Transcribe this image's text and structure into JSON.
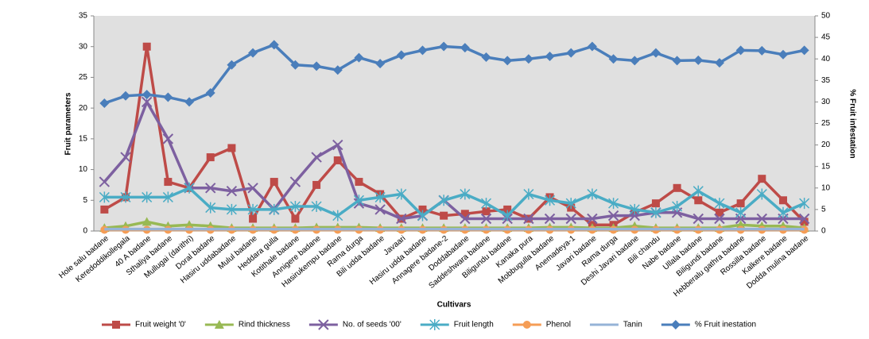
{
  "chart_data": {
    "type": "line",
    "x_label": "Cultivars",
    "y_label": "Fruit parameters",
    "y2_label": "% Fruit infestation",
    "categories": [
      "Hole salu badane",
      "Keredoddikollegala",
      "40 A badane",
      "Sthaliya badane",
      "Mullugai (darithri)",
      "Doral badane",
      "Hasiru uddabadane",
      "Mulul badane",
      "Heddara gulla",
      "Kotithale badane",
      "Annigere badane",
      "Hasirukempu badane",
      "Rama durga",
      "Bili udda badane",
      "Javaari",
      "Hasiru udda badane",
      "Annagere badane-2",
      "Doddabadane",
      "Saddeshwara badane",
      "Biligundu badane",
      "Kanaka pura",
      "Mobbugulla badane",
      "Anemadeya-1",
      "Javari badane",
      "Rama durga",
      "Deshi Javari badane",
      "Bili chandu",
      "Nabe badane",
      "Ullala badane",
      "Biligundi badane",
      "Hebberalu gathra badane",
      "Rossilla badane",
      "Kalkere badane",
      "Dodda mulina badane"
    ],
    "ylim": [
      0,
      35
    ],
    "yticks": [
      0,
      5,
      10,
      15,
      20,
      25,
      30,
      35
    ],
    "y2lim": [
      0,
      50
    ],
    "y2ticks": [
      0,
      5,
      10,
      15,
      20,
      25,
      30,
      35,
      40,
      45,
      50
    ],
    "legend": "bottom",
    "series": [
      {
        "name": "Fruit weight '0'",
        "color": "#be4b48",
        "marker": "square",
        "values": [
          3.5,
          5.5,
          30,
          8,
          7,
          12,
          13.5,
          2,
          8,
          2,
          7.5,
          11.5,
          8,
          6,
          2,
          3.5,
          2.5,
          2.8,
          3.2,
          3.5,
          2,
          5.5,
          3.8,
          1,
          1,
          3,
          4.5,
          7,
          5,
          3,
          4.5,
          8.5,
          5,
          1.5
        ]
      },
      {
        "name": "Rind thickness",
        "color": "#98b954",
        "marker": "triangle",
        "values": [
          0.5,
          0.8,
          1.5,
          0.8,
          1,
          0.8,
          0.5,
          0.5,
          0.5,
          0.5,
          0.6,
          0.6,
          0.6,
          0.5,
          0.5,
          0.5,
          0.5,
          0.5,
          0.5,
          0.5,
          0.5,
          0.6,
          0.6,
          0.5,
          0.5,
          0.8,
          0.5,
          0.5,
          0.5,
          0.5,
          1,
          0.8,
          0.8,
          0.5
        ]
      },
      {
        "name": "No. of seeds '00'",
        "color": "#7d60a0",
        "marker": "cross",
        "values": [
          8,
          12,
          21,
          15,
          7,
          7,
          6.5,
          7,
          3.5,
          8,
          12,
          14,
          4.5,
          3.5,
          2,
          2.5,
          5,
          2,
          2,
          2,
          2,
          2,
          2,
          2,
          2.5,
          2.5,
          3,
          3,
          2,
          2,
          2,
          2,
          2,
          2
        ]
      },
      {
        "name": "Fruit length",
        "color": "#4aacc5",
        "marker": "star",
        "values": [
          5.5,
          5.5,
          5.5,
          5.5,
          7,
          3.8,
          3.5,
          3.5,
          3.5,
          4,
          4,
          2.5,
          5,
          5.5,
          6,
          2.5,
          5,
          6,
          4.5,
          2.5,
          6,
          5,
          4.5,
          6,
          4.5,
          3.5,
          3,
          4,
          6.5,
          4.5,
          3,
          6,
          3,
          4.5
        ]
      },
      {
        "name": "Phenol",
        "color": "#f59d56",
        "marker": "circle",
        "values": [
          0.2,
          0.2,
          0.2,
          0.2,
          0.2,
          0.2,
          0.2,
          0.2,
          0.2,
          0.2,
          0.2,
          0.2,
          0.2,
          0.2,
          0.2,
          0.2,
          0.2,
          0.2,
          0.2,
          0.2,
          0.2,
          0.2,
          0.2,
          0.2,
          0.2,
          0.2,
          0.2,
          0.2,
          0.2,
          0.2,
          0.2,
          0.2,
          0.2,
          0.2
        ]
      },
      {
        "name": "Tanin",
        "color": "#95b3d7",
        "marker": "none",
        "values": [
          0.3,
          0.3,
          0.3,
          0.3,
          0.3,
          0.3,
          0.3,
          0.3,
          0.3,
          0.3,
          0.3,
          0.3,
          0.3,
          0.3,
          0.3,
          0.3,
          0.3,
          0.3,
          0.3,
          0.3,
          0.3,
          0.3,
          0.3,
          0.3,
          0.3,
          0.3,
          0.3,
          0.3,
          0.3,
          0.3,
          0.3,
          0.3,
          0.3,
          0.3
        ]
      },
      {
        "name": "% Fruit inestation",
        "color": "#4a7ebb",
        "marker": "diamond",
        "axis": "y2",
        "values": [
          29.7,
          31.4,
          31.7,
          31.1,
          30,
          32.1,
          38.6,
          41.4,
          43.3,
          38.6,
          38.3,
          37.4,
          40.3,
          38.9,
          40.9,
          42,
          42.9,
          42.6,
          40.4,
          39.6,
          40,
          40.6,
          41.4,
          42.9,
          40,
          39.6,
          41.4,
          39.6,
          39.7,
          39.1,
          42,
          41.9,
          41,
          42
        ]
      }
    ]
  }
}
